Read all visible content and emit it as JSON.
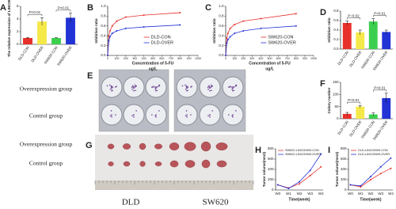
{
  "chart_data": [
    {
      "panel": "A",
      "type": "bar",
      "ylabel": "The relative expression of LINC00909",
      "categories": [
        "DLD-CON",
        "DLD-OVER",
        "SW620-CON",
        "SW620-OVER"
      ],
      "values": [
        1,
        3.6,
        1,
        4.2
      ],
      "errors": [
        0.1,
        0.6,
        0.05,
        0.7
      ],
      "colors": [
        "#e8302a",
        "#f5e94a",
        "#3ccf4e",
        "#2233d6"
      ],
      "ylim": [
        0,
        6
      ],
      "yticks": [
        0,
        2,
        4,
        6
      ],
      "annotations": [
        "P<0.01",
        "P<0.01"
      ]
    },
    {
      "panel": "B",
      "type": "line",
      "ylabel": "Inhibition ratio",
      "xlabel": "Concentration of 5-FU",
      "xunit": "ug/L",
      "x": [
        0,
        12.5,
        25,
        50,
        100,
        200,
        400,
        800
      ],
      "series": [
        {
          "name": "DLD-CON",
          "color": "#e8302a",
          "values": [
            0,
            0.4,
            0.5,
            0.6,
            0.7,
            0.78,
            0.82,
            0.87
          ]
        },
        {
          "name": "DLD-OVER",
          "color": "#2233d6",
          "values": [
            0,
            0.3,
            0.38,
            0.45,
            0.5,
            0.55,
            0.58,
            0.62
          ]
        }
      ],
      "xlim": [
        0,
        1000
      ],
      "xticks": [
        0,
        100,
        200,
        300,
        400,
        500,
        600,
        700,
        800,
        900,
        1000
      ],
      "ylim": [
        0,
        1
      ],
      "yticks": [
        {
          "value": 0,
          "label": "0.0"
        },
        0.2,
        0.4,
        0.6,
        0.8,
        {
          "value": 1,
          "label": "1.0"
        }
      ],
      "legend": "center right"
    },
    {
      "panel": "C",
      "type": "line",
      "ylabel": "Inhibition ratio",
      "xlabel": "Concentration of 5-FU",
      "xunit": "ug/L",
      "x": [
        0,
        12.5,
        25,
        50,
        100,
        200,
        400,
        800
      ],
      "series": [
        {
          "name": "SW620-CON",
          "color": "#e8302a",
          "values": [
            0,
            0.35,
            0.45,
            0.55,
            0.63,
            0.7,
            0.75,
            0.85
          ]
        },
        {
          "name": "SW620-OVER",
          "color": "#2233d6",
          "values": [
            0,
            0.25,
            0.32,
            0.38,
            0.45,
            0.5,
            0.55,
            0.6
          ]
        }
      ],
      "xlim": [
        0,
        1000
      ],
      "xticks": [
        0,
        100,
        200,
        300,
        400,
        500,
        600,
        700,
        800,
        900,
        1000
      ],
      "ylim": [
        0,
        1
      ],
      "yticks": [
        {
          "value": 0,
          "label": "0.0"
        },
        0.2,
        0.4,
        0.6,
        0.8,
        {
          "value": 1,
          "label": "1.0"
        }
      ],
      "legend": "center right"
    },
    {
      "panel": "D",
      "type": "bar",
      "ylabel": "Inhibition ratio",
      "categories": [
        "DLD-CON",
        "DLD-OVER",
        "SW620-CON",
        "SW620-OVER"
      ],
      "values": [
        0.55,
        0.35,
        0.58,
        0.36
      ],
      "errors": [
        0.04,
        0.05,
        0.06,
        0.04
      ],
      "colors": [
        "#e8302a",
        "#f5e94a",
        "#3ccf4e",
        "#2233d6"
      ],
      "ylim": [
        0,
        0.8
      ],
      "yticks": [
        {
          "value": 0,
          "label": "0.0"
        },
        0.2,
        0.4,
        0.6,
        0.8
      ],
      "annotations": [
        "P=0.02",
        "P<0.01"
      ]
    },
    {
      "panel": "F",
      "type": "bar",
      "ylabel": "Colony number",
      "categories": [
        "DLD-CON",
        "DLD-OVER",
        "SW620-CON",
        "SW620-OVER"
      ],
      "values": [
        20,
        50,
        18,
        85
      ],
      "errors": [
        6,
        5,
        6,
        20
      ],
      "colors": [
        "#e8302a",
        "#f5e94a",
        "#3ccf4e",
        "#2233d6"
      ],
      "ylim": [
        0,
        150
      ],
      "yticks": [
        0,
        50,
        100,
        150
      ],
      "annotations": [
        "P<0.01",
        "P<0.01"
      ]
    },
    {
      "panel": "H",
      "type": "line",
      "ylabel": "Tumor volume(mm3)",
      "xlabel": "Time(week)",
      "categories": [
        "W0",
        "W1",
        "W2",
        "W3",
        "W4"
      ],
      "series": [
        {
          "name": "SW620-LINC00909-CON",
          "color": "#e8302a",
          "values": [
            100,
            40,
            120,
            280,
            450
          ]
        },
        {
          "name": "SW620-LINC00909-OVER",
          "color": "#2233d6",
          "values": [
            100,
            30,
            160,
            380,
            700
          ]
        }
      ],
      "ylim": [
        0,
        800
      ],
      "yticks": [
        0,
        200,
        400,
        600,
        800
      ],
      "legend": "upper left"
    },
    {
      "panel": "I",
      "type": "line",
      "ylabel": "Tumor volume(mm3)",
      "xlabel": "Time(week)",
      "categories": [
        "W0",
        "W1",
        "W2",
        "W3",
        "W4"
      ],
      "series": [
        {
          "name": "DLD-LINC00909-CON",
          "color": "#e8302a",
          "values": [
            100,
            60,
            200,
            320,
            420
          ]
        },
        {
          "name": "DLD-LINC00909-OVER",
          "color": "#2233d6",
          "values": [
            100,
            80,
            260,
            450,
            620
          ]
        }
      ],
      "ylim": [
        0,
        800
      ],
      "yticks": [
        0,
        200,
        400,
        600,
        800
      ],
      "legend": "upper left"
    }
  ],
  "photos": {
    "E": {
      "panel": "E",
      "rows": [
        "Overexpression group",
        "Control group"
      ]
    },
    "G": {
      "panel": "G",
      "rows": [
        "Overexpression group",
        "Control group"
      ],
      "columns": [
        "DLD",
        "SW620"
      ]
    }
  }
}
